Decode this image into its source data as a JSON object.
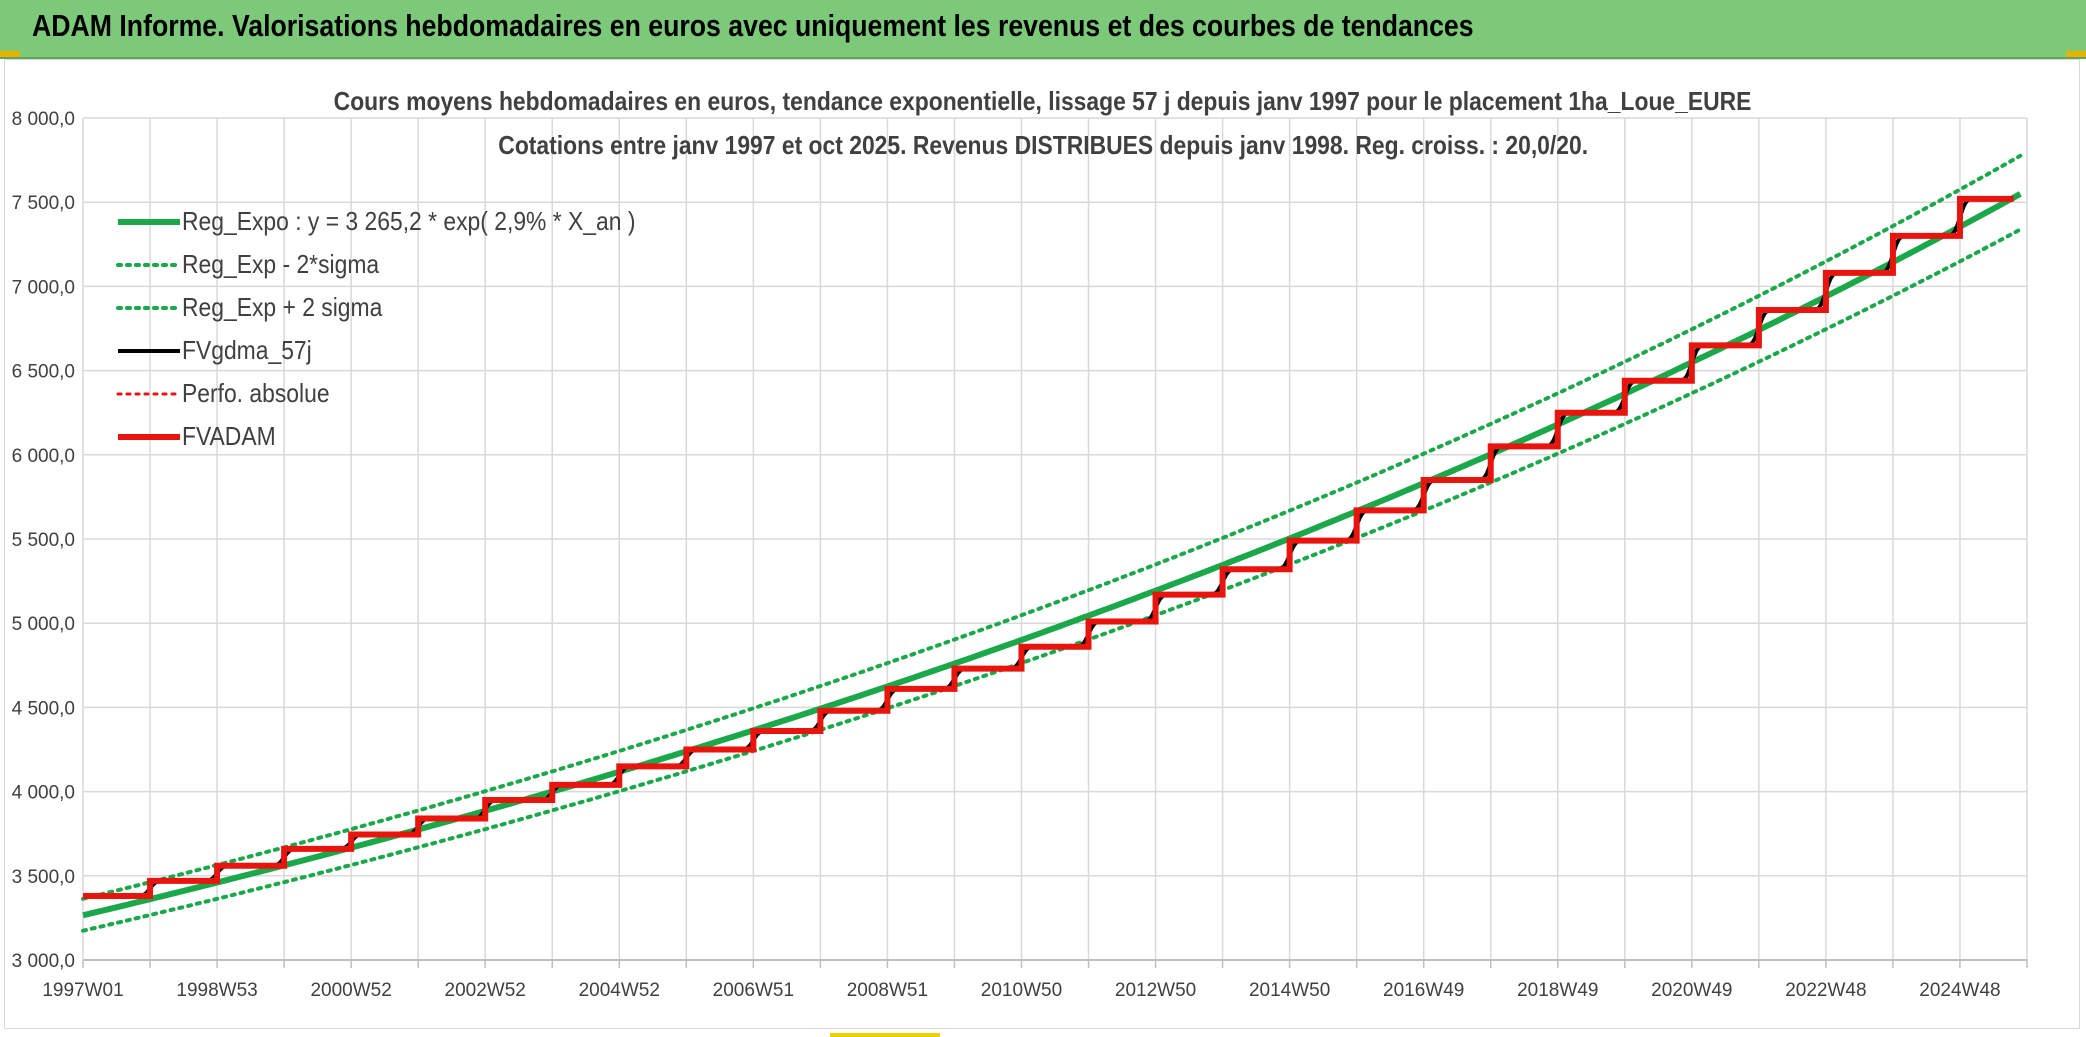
{
  "header": {
    "title": "ADAM Informe. Valorisations hebdomadaires en euros avec uniquement les revenus et des courbes de tendances"
  },
  "colors": {
    "banner": "#7cc97a",
    "green": "#1aa84a",
    "red": "#e8140e",
    "black": "#000000",
    "grid": "#d9d9d9",
    "text": "#404040"
  },
  "chart_data": {
    "type": "line",
    "title": "Cours moyens hebdomadaires en euros, tendance exponentielle, lissage 57 j depuis janv 1997 pour le placement 1ha_Loue_EURE",
    "subtitle": "Cotations entre janv 1997 et oct 2025. Revenus DISTRIBUES depuis janv 1998. Reg. croiss. : 20,0/20.",
    "xlabel": "",
    "ylabel": "",
    "ylim": [
      3000,
      8000
    ],
    "yticks": [
      "3 000,0",
      "3 500,0",
      "4 000,0",
      "4 500,0",
      "5 000,0",
      "5 500,0",
      "6 000,0",
      "6 500,0",
      "7 000,0",
      "7 500,0",
      "8 000,0"
    ],
    "xticks": [
      "1997W01",
      "1998W53",
      "2000W52",
      "2002W52",
      "2004W52",
      "2006W51",
      "2008W51",
      "2010W50",
      "2012W50",
      "2014W50",
      "2016W49",
      "2018W49",
      "2020W49",
      "2022W48",
      "2024W48"
    ],
    "xlim_years": [
      1997.0,
      2026.0
    ],
    "grid": true,
    "legend_position": "top-left",
    "legend": [
      {
        "name": "Reg_Expo : y = 3 265,2 * exp( 2,9% *  X_an )",
        "color": "#1aa84a",
        "style": "solid",
        "width": 6
      },
      {
        "name": "Reg_Exp - 2*sigma",
        "color": "#1aa84a",
        "style": "dotted",
        "width": 4
      },
      {
        "name": "Reg_Exp + 2 sigma",
        "color": "#1aa84a",
        "style": "dotted",
        "width": 4
      },
      {
        "name": "FVgdma_57j",
        "color": "#000000",
        "style": "solid",
        "width": 4
      },
      {
        "name": "Perfo. absolue",
        "color": "#e8140e",
        "style": "dotted",
        "width": 3
      },
      {
        "name": "FVADAM",
        "color": "#e8140e",
        "style": "solid",
        "width": 6
      }
    ],
    "regression": {
      "a": 3265.2,
      "rate": 0.029,
      "lower_factor": 0.972,
      "upper_factor": 1.03
    },
    "fvadam_steps": [
      {
        "from": 1997.0,
        "value": 3380
      },
      {
        "from": 1998.0,
        "value": 3470
      },
      {
        "from": 1999.0,
        "value": 3560
      },
      {
        "from": 2000.0,
        "value": 3660
      },
      {
        "from": 2001.0,
        "value": 3745
      },
      {
        "from": 2002.0,
        "value": 3840
      },
      {
        "from": 2003.0,
        "value": 3950
      },
      {
        "from": 2004.0,
        "value": 4040
      },
      {
        "from": 2005.0,
        "value": 4150
      },
      {
        "from": 2006.0,
        "value": 4250
      },
      {
        "from": 2007.0,
        "value": 4360
      },
      {
        "from": 2008.0,
        "value": 4480
      },
      {
        "from": 2009.0,
        "value": 4610
      },
      {
        "from": 2010.0,
        "value": 4730
      },
      {
        "from": 2011.0,
        "value": 4860
      },
      {
        "from": 2012.0,
        "value": 5010
      },
      {
        "from": 2013.0,
        "value": 5170
      },
      {
        "from": 2014.0,
        "value": 5320
      },
      {
        "from": 2015.0,
        "value": 5490
      },
      {
        "from": 2016.0,
        "value": 5670
      },
      {
        "from": 2017.0,
        "value": 5850
      },
      {
        "from": 2018.0,
        "value": 6050
      },
      {
        "from": 2019.0,
        "value": 6250
      },
      {
        "from": 2020.0,
        "value": 6440
      },
      {
        "from": 2021.0,
        "value": 6650
      },
      {
        "from": 2022.0,
        "value": 6860
      },
      {
        "from": 2023.0,
        "value": 7080
      },
      {
        "from": 2024.0,
        "value": 7300
      },
      {
        "from": 2025.0,
        "value": 7520
      }
    ],
    "end_year": 2025.8
  }
}
